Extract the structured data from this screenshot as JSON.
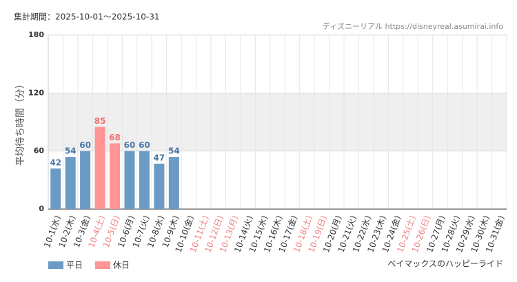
{
  "chart_data": {
    "type": "bar",
    "title": "集計期間：2025-10-01～2025-10-31",
    "source": "ディズニーリアル https://disneyreal.asumirai.info",
    "y_label": "平均待ち時間（分）",
    "footer": "ベイマックスのハッピーライド",
    "categories": [
      "10-1(水)",
      "10-2(木)",
      "10-3(金)",
      "10-4(土)",
      "10-5(日)",
      "10-6(月)",
      "10-7(火)",
      "10-8(水)",
      "10-9(木)",
      "10-10(金)",
      "10-11(土)",
      "10-12(日)",
      "10-13(月)",
      "10-14(火)",
      "10-15(水)",
      "10-16(木)",
      "10-17(金)",
      "10-18(土)",
      "10-19(日)",
      "10-20(月)",
      "10-21(火)",
      "10-22(水)",
      "10-23(木)",
      "10-24(金)",
      "10-25(土)",
      "10-26(日)",
      "10-27(月)",
      "10-28(火)",
      "10-29(水)",
      "10-30(木)",
      "10-31(金)"
    ],
    "category_label_colors": [
      "#333",
      "#333",
      "#333",
      "#f08080",
      "#f08080",
      "#333",
      "#333",
      "#333",
      "#333",
      "#333",
      "#f08080",
      "#f08080",
      "#f08080",
      "#333",
      "#333",
      "#333",
      "#333",
      "#f08080",
      "#f08080",
      "#333",
      "#333",
      "#333",
      "#333",
      "#333",
      "#f08080",
      "#f08080",
      "#333",
      "#333",
      "#333",
      "#333",
      "#333"
    ],
    "series": [
      {
        "name": "平日",
        "color": "#6b9ac4",
        "label_color": "#4a78a8",
        "values": [
          42,
          54,
          60,
          null,
          null,
          60,
          60,
          47,
          54,
          null,
          null,
          null,
          null,
          null,
          null,
          null,
          null,
          null,
          null,
          null,
          null,
          null,
          null,
          null,
          null,
          null,
          null,
          null,
          null,
          null,
          null
        ]
      },
      {
        "name": "休日",
        "color": "#ff9595",
        "label_color": "#f07070",
        "values": [
          null,
          null,
          null,
          85,
          68,
          null,
          null,
          null,
          null,
          null,
          null,
          null,
          null,
          null,
          null,
          null,
          null,
          null,
          null,
          null,
          null,
          null,
          null,
          null,
          null,
          null,
          null,
          null,
          null,
          null,
          null
        ]
      }
    ],
    "ylim": [
      0,
      180
    ],
    "yticks": [
      0,
      60,
      120,
      180
    ],
    "shaded_band": [
      60,
      120
    ],
    "grid": true
  }
}
